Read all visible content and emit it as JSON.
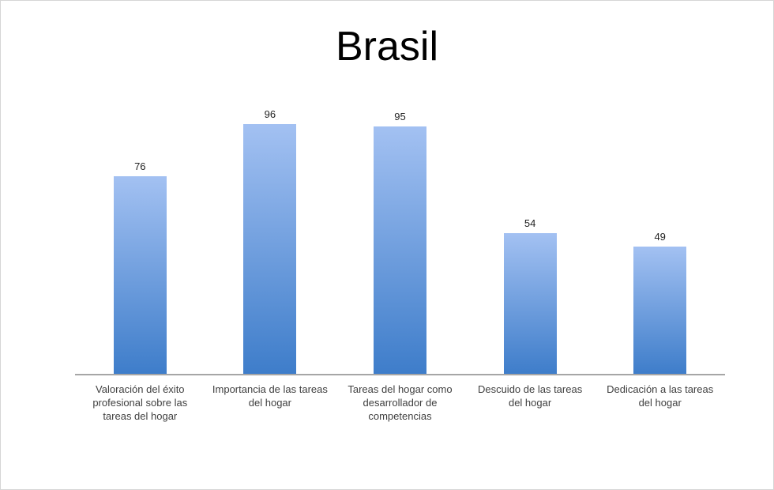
{
  "chart_data": {
    "type": "bar",
    "title": "Brasil",
    "categories": [
      "Valoración del éxito profesional sobre las tareas del hogar",
      "Importancia de las tareas del hogar",
      "Tareas del hogar como desarrollador de competencias",
      "Descuido de las tareas del hogar",
      "Dedicación a las tareas del hogar"
    ],
    "values": [
      76,
      96,
      95,
      54,
      49
    ],
    "xlabel": "",
    "ylabel": "",
    "ylim": [
      0,
      100
    ],
    "grid": "off",
    "legend": "none",
    "data_labels": true,
    "bar_gradient_top": "#a3c1f2",
    "bar_gradient_bottom": "#3e7dca",
    "axis_line_color": "#a6a6a6",
    "title_color": "#000000",
    "label_color": "#3f3f3f",
    "value_label_color": "#1f1f1f"
  }
}
